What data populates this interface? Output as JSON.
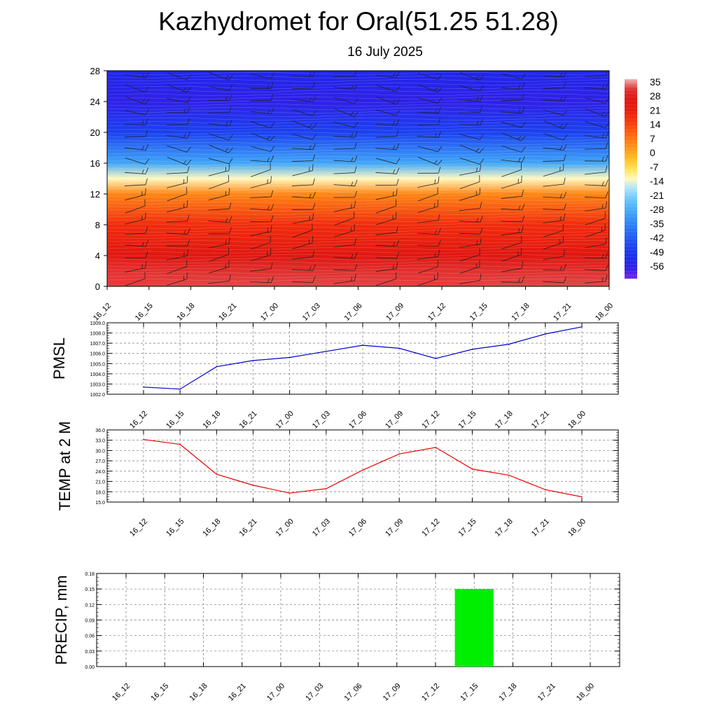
{
  "title": "Kazhydromet for Oral(51.25 51.28)",
  "subtitle": "16 July 2025",
  "time_labels": [
    "16_12",
    "16_15",
    "16_18",
    "16_21",
    "17_00",
    "17_03",
    "17_06",
    "17_09",
    "17_12",
    "17_15",
    "17_18",
    "17_21",
    "18_00"
  ],
  "chart_data": [
    {
      "type": "heatmap",
      "title": "",
      "xlabel": "",
      "ylabel": "",
      "x": [
        "16_12",
        "16_15",
        "16_18",
        "16_21",
        "17_00",
        "17_03",
        "17_06",
        "17_09",
        "17_12",
        "17_15",
        "17_18",
        "17_21",
        "18_00"
      ],
      "ylim": [
        0,
        28
      ],
      "yticks": [
        0,
        4,
        8,
        12,
        16,
        20,
        24,
        28
      ],
      "colorbar_labels": [
        "35",
        "28",
        "21",
        "14",
        "7",
        "0",
        "-7",
        "-14",
        "-21",
        "-28",
        "-35",
        "-42",
        "-49",
        "-56"
      ],
      "value_range": [
        -60,
        36
      ],
      "profile_levels": [
        0,
        4,
        8,
        12,
        14,
        16,
        20,
        24,
        28
      ],
      "profile_values": [
        32,
        26,
        18,
        5,
        -12,
        -28,
        -45,
        -55,
        -52
      ],
      "wind_barbs": true
    },
    {
      "type": "line",
      "ylabel": "PMSL",
      "x": [
        "16_12",
        "16_15",
        "16_18",
        "16_21",
        "17_00",
        "17_03",
        "17_06",
        "17_09",
        "17_12",
        "17_15",
        "17_18",
        "17_21",
        "18_00"
      ],
      "values": [
        1002.7,
        1002.5,
        1004.7,
        1005.3,
        1005.6,
        1006.2,
        1006.8,
        1006.5,
        1005.5,
        1006.4,
        1006.9,
        1007.9,
        1008.6
      ],
      "ylim": [
        1002.0,
        1009.0
      ],
      "ytick_labels": [
        "1002.0",
        "1003.0",
        "1004.0",
        "1005.0",
        "1006.0",
        "1007.0",
        "1008.0",
        "1009.0"
      ],
      "color": "#0000cc"
    },
    {
      "type": "line",
      "ylabel": "TEMP at 2 M",
      "x": [
        "16_12",
        "16_15",
        "16_18",
        "16_21",
        "17_00",
        "17_03",
        "17_06",
        "17_09",
        "17_12",
        "17_15",
        "17_18",
        "17_21",
        "18_00"
      ],
      "values": [
        33.2,
        31.8,
        23.1,
        19.9,
        17.6,
        18.9,
        24.3,
        29.0,
        30.9,
        24.6,
        22.8,
        18.6,
        16.5
      ],
      "ylim": [
        15.0,
        36.0
      ],
      "ytick_labels": [
        "15.0",
        "18.0",
        "21.0",
        "24.0",
        "27.0",
        "30.0",
        "33.0",
        "36.0"
      ],
      "color": "#ee0000"
    },
    {
      "type": "bar",
      "ylabel": "PRECIP, mm",
      "categories": [
        "16_12",
        "16_15",
        "16_18",
        "16_21",
        "17_00",
        "17_03",
        "17_06",
        "17_09",
        "17_12",
        "17_15",
        "17_18",
        "17_21",
        "18_00"
      ],
      "values": [
        0,
        0,
        0,
        0,
        0,
        0,
        0,
        0,
        0,
        0.15,
        0,
        0,
        0
      ],
      "ylim": [
        0,
        0.18
      ],
      "ytick_labels": [
        "0.00",
        "0.03",
        "0.06",
        "0.09",
        "0.12",
        "0.15",
        "0.18"
      ],
      "color": "#00ee00"
    }
  ]
}
